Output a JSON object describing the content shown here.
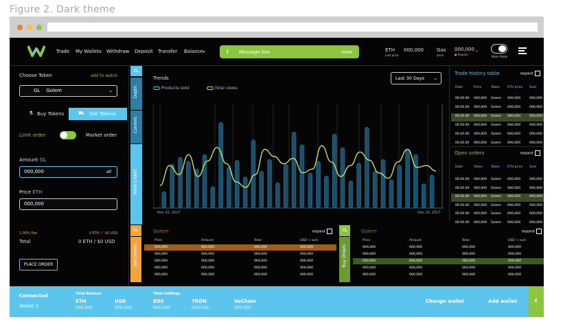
{
  "caption": "Figure 2. Dark theme",
  "colors": {
    "accent_green": "#8cc63f",
    "accent_blue": "#5bc5ee",
    "accent_orange": "#f3a43b",
    "background": "#050505"
  },
  "nav": {
    "logo": "W",
    "links": [
      "Trade",
      "My Wallets",
      "Withdraw",
      "Deposit",
      "Transfer",
      "Balance"
    ],
    "message_icon": "i",
    "message_box": "Message box",
    "message_view": "view",
    "eth_label": "ETH",
    "eth_sub": "Last price",
    "eth_value": "000,000",
    "gas_label": "Gas",
    "gas_sub": "price",
    "gas_value": "000,000",
    "gas_status": "Regular",
    "mode_label": "Moon Mode"
  },
  "left": {
    "choose_token": "Choose Token",
    "add_to_watch": "add to watch",
    "token_select": "GL    Golem",
    "buy_tab": "Buy Tokens",
    "sell_tab": "Sell Tokens",
    "limit_order": "Limit order",
    "market_order": "Market order",
    "amount_label": "Amount",
    "amount_unit": "GL",
    "amount_value": "000,000",
    "amount_all": "all",
    "price_label": "Price",
    "price_unit": "ETH",
    "price_value": "000,000",
    "fee": "1.00% Fee",
    "fee_value": "0 ETH  /  $0 USD",
    "total_label": "Total",
    "total_value": "0 ETH / $0 USD",
    "place_order": "PLACE ORDER"
  },
  "chart_tabs": {
    "gl": "GL",
    "depth": "Depth",
    "candels": "Candels",
    "main": "MAIN CHART"
  },
  "chart": {
    "title": "Trends",
    "range_select": "Last 30 Days",
    "legend_products": "Products sold",
    "legend_views": "Total views",
    "date_start": "Nov 10, 2017",
    "date_end": "Dec 10, 2017"
  },
  "chart_data": {
    "type": "line",
    "title": "Trends",
    "series": [
      {
        "name": "Products sold",
        "type": "bar",
        "values": [
          0.17,
          0.45,
          0.52,
          0.48,
          0.4,
          0.55,
          0.22,
          0.88,
          0.42,
          0.49,
          0.32,
          0.7,
          0.38,
          0.5,
          0.26,
          0.45,
          0.78,
          0.65,
          0.36,
          0.48,
          0.33,
          0.76,
          0.62,
          0.28,
          0.46,
          0.83,
          0.38,
          0.5,
          0.29,
          0.44,
          0.6,
          0.55,
          0.25,
          0.34
        ]
      },
      {
        "name": "Total views",
        "type": "line",
        "values": [
          0.18,
          0.4,
          0.3,
          0.52,
          0.28,
          0.45,
          0.6,
          0.42,
          0.22,
          0.16,
          0.3,
          0.58,
          0.5,
          0.42,
          0.48,
          0.32,
          0.36,
          0.62,
          0.44,
          0.28,
          0.4,
          0.55,
          0.46,
          0.32,
          0.26,
          0.44,
          0.58,
          0.38,
          0.4,
          0.34
        ]
      }
    ],
    "grid": true
  },
  "trade_history": {
    "title": "Trade history table",
    "expand": "expand",
    "headers": [
      "Date",
      "Price",
      "Token",
      "ETH price",
      "Sum"
    ],
    "rows": [
      [
        "00.00.00",
        "000,000",
        "Golem",
        "000,000",
        "000,000"
      ],
      [
        "00.00.00",
        "000,000",
        "Golem",
        "000,000",
        "000,000"
      ],
      [
        "00.00.00",
        "000,000",
        "Golem",
        "000,000",
        "000,000"
      ],
      [
        "00.00.00",
        "000,000",
        "Golem",
        "000,000",
        "000,000"
      ],
      [
        "00.00.00",
        "000,000",
        "Golem",
        "000,000",
        "000,000"
      ],
      [
        "00.00.00",
        "000,000",
        "Golem",
        "000,000",
        "000,000"
      ]
    ]
  },
  "open_orders": {
    "title": "Open orders",
    "expand": "expand",
    "headers": [
      "Date",
      "Token",
      "Token",
      "ETH price",
      "Sum"
    ],
    "rows": [
      [
        "00.00.00",
        "000,000",
        "Golem",
        "000,000",
        "000,000"
      ],
      [
        "00.00.00",
        "000,000",
        "Golem",
        "000,000",
        "000,000"
      ],
      [
        "00.00.00",
        "000,000",
        "Golem",
        "000,000",
        "000,000"
      ],
      [
        "00.00.00",
        "000,000",
        "Golem",
        "000,000",
        "000,000"
      ],
      [
        "00.00.00",
        "000,000",
        "Golem",
        "000,000",
        "000,000"
      ],
      [
        "00.00.00",
        "000,000",
        "Golem",
        "000,000",
        "000,000"
      ]
    ]
  },
  "sell_orders": {
    "gl": "GL",
    "tab": "Sell Orders",
    "title": "Golem",
    "expand": "expand",
    "headers": [
      "Price",
      "Amount",
      "Total",
      "USD + sum"
    ],
    "rows": [
      [
        "000,000",
        "000,000",
        "000,000",
        "000,000"
      ],
      [
        "000,000",
        "000,000",
        "000,000",
        "000,000"
      ],
      [
        "000,000",
        "000,000",
        "000,000",
        "000,000"
      ],
      [
        "000,000",
        "000,000",
        "000,000",
        "000,000"
      ],
      [
        "000,000",
        "000,000",
        "000,000",
        "000,000"
      ]
    ]
  },
  "buy_orders": {
    "gl": "GL",
    "tab": "Buy Orders",
    "title": "Golem",
    "expand": "expand",
    "headers": [
      "Price",
      "Amount",
      "Total",
      "USD + sum"
    ],
    "rows": [
      [
        "000,000",
        "000,000",
        "000,000",
        "000,000"
      ],
      [
        "000,000",
        "000,000",
        "000,000",
        "000,000"
      ],
      [
        "000,000",
        "000,000",
        "000,000",
        "000,000"
      ],
      [
        "000,000",
        "000,000",
        "000,000",
        "000,000"
      ],
      [
        "000,000",
        "000,000",
        "000,000",
        "000,000"
      ]
    ]
  },
  "footer": {
    "connected": "Connected",
    "wallet": "Wallet 1",
    "total_balance": "Total Balance",
    "total_holdings": "Total holdings",
    "balances": [
      {
        "name": "ETH",
        "value": "000,000"
      },
      {
        "name": "USD",
        "value": "000,000"
      }
    ],
    "holdings": [
      {
        "name": "EOS",
        "value": "000,000"
      },
      {
        "name": "TRON",
        "value": "000,000"
      },
      {
        "name": "VeChain",
        "value": "000,000"
      }
    ],
    "change_wallet": "Change wallet",
    "add_wallet": "Add wallet",
    "collapse": "‹"
  }
}
